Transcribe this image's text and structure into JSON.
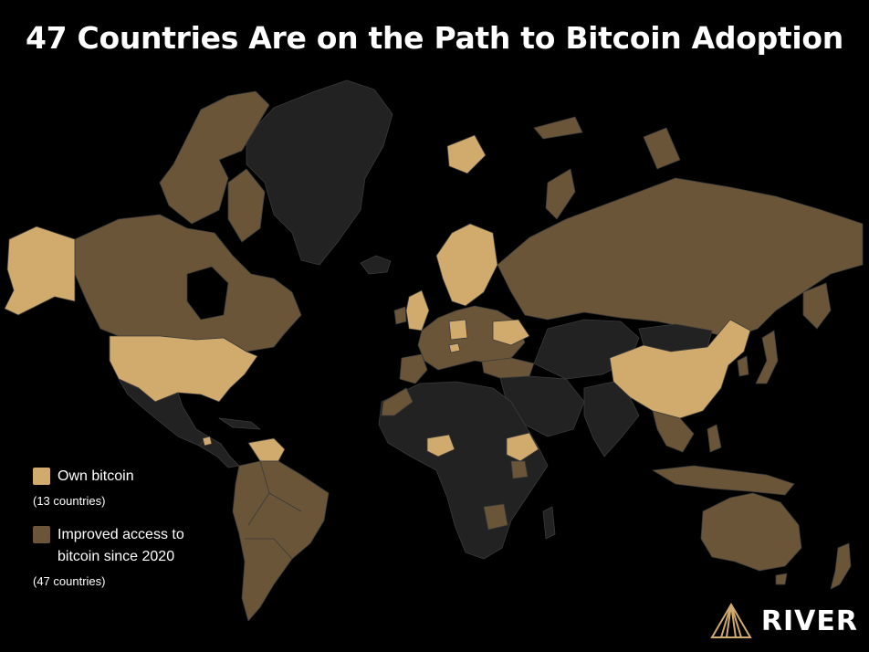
{
  "title": "47 Countries Are on the Path to Bitcoin Adoption",
  "colors": {
    "background": "#000000",
    "neutral_country": "#222222",
    "own_bitcoin": "#d1aa6e",
    "improved_access": "#6b5538",
    "border": "#3a3a3a"
  },
  "legend": {
    "own": {
      "label": "Own bitcoin",
      "count": "(13 countries)"
    },
    "improved": {
      "label": "Improved access to\nbitcoin since 2020",
      "count": "(47 countries)"
    }
  },
  "logo": {
    "text": "RIVER"
  }
}
